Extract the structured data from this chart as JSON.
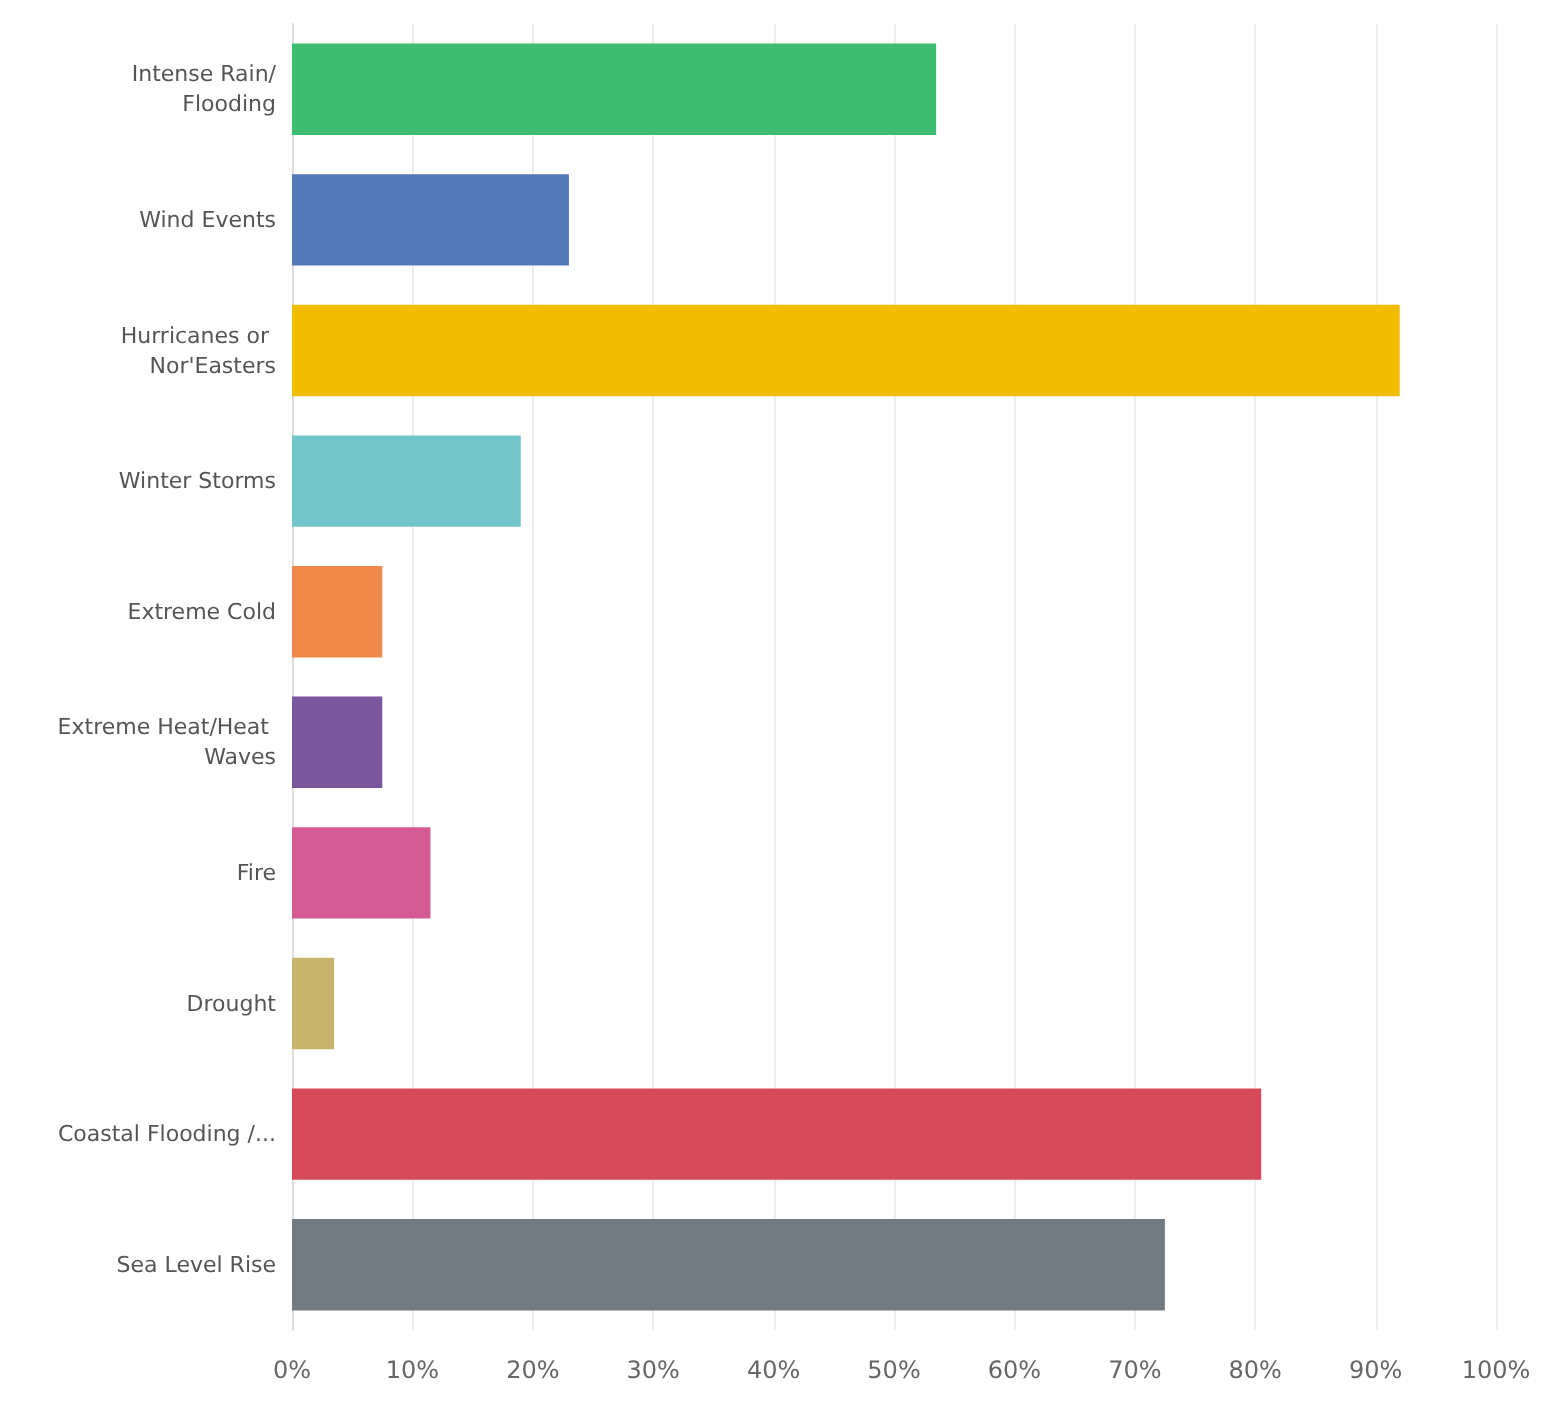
{
  "chart_data": {
    "type": "bar",
    "orientation": "horizontal",
    "categories": [
      "Intense Rain/Flooding",
      "Wind Events",
      "Hurricanes or Nor'Easters",
      "Winter Storms",
      "Extreme Cold",
      "Extreme Heat/Heat Waves",
      "Fire",
      "Drought",
      "Coastal Flooding /...",
      "Sea Level Rise"
    ],
    "values": [
      53.5,
      23,
      92,
      19,
      7.5,
      7.5,
      11.5,
      3.5,
      80.5,
      72.5
    ],
    "colors": [
      "#3dbd6f",
      "#5479b8",
      "#f0bd00",
      "#72c6c9",
      "#f0884a",
      "#7a579c",
      "#d45a93",
      "#c9b46e",
      "#d64a5a",
      "#737b82"
    ],
    "xlim": [
      0,
      100
    ],
    "xticks": [
      {
        "value": 0,
        "label": "0%"
      },
      {
        "value": 10,
        "label": "10%"
      },
      {
        "value": 20,
        "label": "20%"
      },
      {
        "value": 30,
        "label": "30%"
      },
      {
        "value": 40,
        "label": "40%"
      },
      {
        "value": 50,
        "label": "50%"
      },
      {
        "value": 60,
        "label": "60%"
      },
      {
        "value": 70,
        "label": "70%"
      },
      {
        "value": 80,
        "label": "80%"
      },
      {
        "value": 90,
        "label": "90%"
      },
      {
        "value": 100,
        "label": "100%"
      }
    ],
    "grid": "x"
  }
}
